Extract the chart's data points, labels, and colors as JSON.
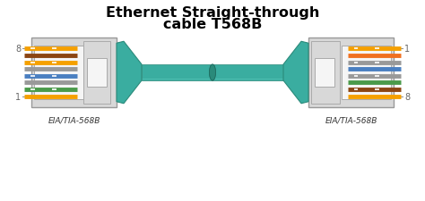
{
  "title_line1": "Ethernet Straight-through",
  "title_line2": "cable T568B",
  "bg_color": "#ffffff",
  "title_color": "#000000",
  "label_color": "#666666",
  "teal": "#3aada0",
  "teal_dark": "#2a8a7a",
  "teal_shadow": "#1e6a5e",
  "connector_outer": "#d8d8d8",
  "connector_border": "#999999",
  "connector_inner": "#f5f5f5",
  "latch_color": "#cccccc",
  "wire_colors_left_t568b": [
    [
      "#f5a000",
      "#8B4513"
    ],
    [
      "#f5a000",
      "#cccccc"
    ],
    [
      "#4a7fc1",
      "#cccccc"
    ],
    [
      "#4a9a4a",
      "#f5a000"
    ],
    [
      "#f5a000",
      "#f07020"
    ],
    [
      "#cccccc",
      "#4a7fc1"
    ],
    [
      "#cccccc",
      "#4a9a4a"
    ],
    [
      "#f5a000",
      "#8B4513"
    ]
  ],
  "wire_solid_left": [
    "#f5a000",
    "#8B4513",
    "#f5a000",
    "#999999",
    "#4a7fc1",
    "#999999",
    "#4a9a4a",
    "#f5a000"
  ],
  "wire_solid_right": [
    "#f5a000",
    "#f07020",
    "#999999",
    "#4a7fc1",
    "#999999",
    "#4a9a4a",
    "#8B4513",
    "#f5a000"
  ],
  "label_left_top": "8",
  "label_left_bottom": "1",
  "label_right_top": "1",
  "label_right_bottom": "8",
  "caption": "EIA/TIA-568B"
}
